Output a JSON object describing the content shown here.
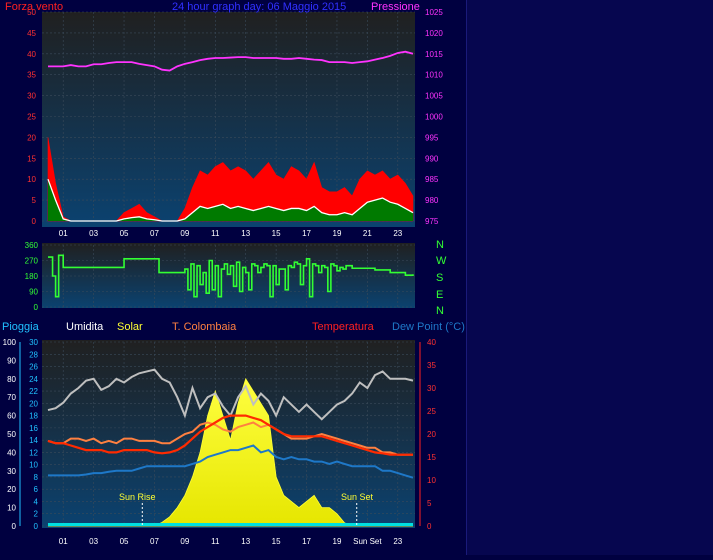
{
  "header": {
    "left_label": "Forza vento",
    "title": "24 hour graph day: 06 Maggio 2015",
    "right_label": "Pressione"
  },
  "middle_labels": {
    "compass": [
      "N",
      "W",
      "S",
      "E",
      "N"
    ]
  },
  "bottom_header": {
    "pioggia": "Pioggia",
    "umidita": "Umidita",
    "solar": "Solar",
    "colombaia": "T. Colombaia",
    "temperatura": "Temperatura",
    "dewpoint": "Dew Point (°C)"
  },
  "annotations": {
    "sunrise": "Sun Rise",
    "sunset": "Sun Set"
  },
  "colors": {
    "bg": "#000040",
    "plot_top": "#222222",
    "plot_bottom": "#0a3d66",
    "wind": "#ff0000",
    "gust_fill": "#007a00",
    "avg_line": "#ffffff",
    "pressure": "#ff33ff",
    "direction": "#33ff33",
    "humidity": "#bfbfbf",
    "solar": "#ffff33",
    "colombaia": "#ff8040",
    "temperature": "#ff2a00",
    "dewpoint": "#1e78c8",
    "rain": "#00e0e0"
  },
  "chart_data": [
    {
      "type": "area",
      "name": "wind-pressure",
      "x_ticks": [
        "01",
        "03",
        "05",
        "07",
        "09",
        "11",
        "13",
        "15",
        "17",
        "19",
        "21",
        "23"
      ],
      "y_left": {
        "label": "Forza vento",
        "ticks": [
          0,
          5,
          10,
          15,
          20,
          25,
          30,
          35,
          40,
          45,
          50
        ],
        "ylim": [
          0,
          50
        ]
      },
      "y_right": {
        "label": "Pressione",
        "ticks": [
          975,
          980,
          985,
          990,
          995,
          1000,
          1005,
          1010,
          1015,
          1020,
          1025
        ],
        "ylim": [
          975,
          1025
        ]
      },
      "hours": [
        0,
        0.5,
        1,
        1.5,
        2,
        2.5,
        3,
        3.5,
        4,
        4.5,
        5,
        5.5,
        6,
        6.5,
        7,
        7.5,
        8,
        8.5,
        9,
        9.5,
        10,
        10.5,
        11,
        11.5,
        12,
        12.5,
        13,
        13.5,
        14,
        14.5,
        15,
        15.5,
        16,
        16.5,
        17,
        17.5,
        18,
        18.5,
        19,
        19.5,
        20,
        20.5,
        21,
        21.5,
        22,
        22.5,
        23,
        23.5,
        24
      ],
      "series": [
        {
          "name": "Pressione",
          "values": [
            1012,
            1012,
            1012,
            1012.3,
            1012,
            1012,
            1012.5,
            1012.5,
            1012.8,
            1013,
            1013,
            1013,
            1012.6,
            1012.3,
            1012,
            1011.2,
            1011,
            1012,
            1012.6,
            1013,
            1013.5,
            1013.8,
            1014,
            1014,
            1014.1,
            1014.2,
            1014.2,
            1014,
            1014,
            1014,
            1014,
            1013.8,
            1013.8,
            1014,
            1013.8,
            1013.6,
            1013.5,
            1013,
            1013,
            1013,
            1012.8,
            1013,
            1013.2,
            1013.6,
            1014,
            1014.5,
            1015.2,
            1015.5,
            1015
          ]
        },
        {
          "name": "wind-max",
          "values": [
            20,
            9,
            1,
            0,
            0,
            0,
            0,
            0,
            0,
            0,
            2,
            3,
            4,
            2,
            1,
            0,
            0,
            0,
            3,
            8,
            12,
            11,
            13,
            14,
            12,
            13,
            12,
            10,
            12,
            14,
            11,
            10,
            13,
            12,
            10,
            14,
            8,
            7,
            7,
            8,
            6,
            10,
            12,
            11,
            12,
            10,
            11,
            9,
            6
          ]
        },
        {
          "name": "wind-avg",
          "values": [
            10,
            5,
            0.5,
            0,
            0,
            0,
            0,
            0,
            0,
            0,
            0.5,
            0.8,
            1,
            0.5,
            0.3,
            0,
            0,
            0,
            0.5,
            2,
            3.5,
            3,
            3.5,
            4,
            3,
            3.5,
            3,
            2.5,
            3,
            3.5,
            3,
            2.5,
            3,
            3,
            2.5,
            3.5,
            2,
            1.5,
            1.5,
            2,
            1.5,
            3,
            4.5,
            5,
            5.5,
            4.5,
            4,
            3,
            2
          ]
        }
      ]
    },
    {
      "type": "line",
      "name": "wind-direction",
      "x_ticks": [
        "01",
        "03",
        "05",
        "07",
        "09",
        "11",
        "13",
        "15",
        "17",
        "19",
        "21",
        "23"
      ],
      "y_left": {
        "ticks": [
          0,
          90,
          180,
          270,
          360
        ],
        "ylim": [
          0,
          360
        ]
      },
      "series": [
        {
          "name": "direction",
          "hours": [
            0,
            0.3,
            0.5,
            0.7,
            1,
            1.5,
            2,
            3,
            4,
            4.8,
            5,
            6,
            7,
            7.3,
            8,
            8.5,
            9,
            9.2,
            9.4,
            9.6,
            9.8,
            10,
            10.2,
            10.4,
            10.6,
            10.8,
            11,
            11.2,
            11.4,
            11.6,
            11.8,
            12,
            12.2,
            12.4,
            12.6,
            12.8,
            13,
            13.2,
            13.4,
            13.6,
            13.8,
            14,
            14.2,
            14.4,
            14.6,
            14.8,
            15,
            15.2,
            15.4,
            15.6,
            15.8,
            16,
            16.2,
            16.4,
            16.6,
            16.8,
            17,
            17.2,
            17.4,
            17.6,
            17.8,
            18,
            18.2,
            18.4,
            18.6,
            18.8,
            19,
            19.2,
            19.4,
            19.6,
            19.8,
            20,
            20.5,
            21,
            21.5,
            22,
            22.5,
            23,
            23.5,
            24
          ],
          "values": [
            290,
            180,
            60,
            300,
            230,
            230,
            230,
            230,
            230,
            230,
            280,
            280,
            280,
            200,
            200,
            200,
            220,
            100,
            250,
            60,
            240,
            130,
            200,
            80,
            270,
            100,
            240,
            60,
            220,
            250,
            190,
            240,
            120,
            260,
            90,
            230,
            200,
            100,
            250,
            240,
            200,
            230,
            250,
            240,
            60,
            240,
            130,
            220,
            220,
            100,
            240,
            230,
            260,
            250,
            130,
            240,
            280,
            60,
            250,
            240,
            200,
            240,
            230,
            90,
            250,
            240,
            210,
            230,
            220,
            240,
            240,
            225,
            225,
            225,
            215,
            215,
            200,
            200,
            185,
            190
          ]
        }
      ]
    },
    {
      "type": "line",
      "name": "weather",
      "x_ticks": [
        "01",
        "03",
        "05",
        "07",
        "09",
        "11",
        "13",
        "15",
        "17",
        "19",
        "Sun Set",
        "23"
      ],
      "y_left_pioggia": {
        "ticks": [
          0,
          10,
          20,
          30,
          40,
          50,
          60,
          70,
          80,
          90,
          100
        ],
        "ylim": [
          0,
          100
        ]
      },
      "y_left_umidita": {
        "ticks": [
          0,
          2,
          4,
          6,
          8,
          10,
          12,
          14,
          16,
          18,
          20,
          22,
          24,
          26,
          28,
          30
        ],
        "ylim": [
          0,
          30
        ]
      },
      "y_right": {
        "label": "Temperatura",
        "ticks": [
          0,
          5,
          10,
          15,
          20,
          25,
          30,
          35,
          40
        ],
        "ylim": [
          0,
          40
        ]
      },
      "hours": [
        0,
        0.5,
        1,
        1.5,
        2,
        2.5,
        3,
        3.5,
        4,
        4.5,
        5,
        5.5,
        6,
        6.5,
        7,
        7.5,
        8,
        8.5,
        9,
        9.5,
        10,
        10.5,
        11,
        11.5,
        12,
        12.5,
        13,
        13.5,
        14,
        14.5,
        15,
        15.5,
        16,
        16.5,
        17,
        17.5,
        18,
        18.5,
        19,
        19.5,
        20,
        20.5,
        21,
        21.5,
        22,
        22.5,
        23,
        23.5,
        24
      ],
      "series": [
        {
          "name": "Umidita",
          "values": [
            63,
            64,
            67,
            72,
            75,
            79,
            80,
            74,
            76,
            80,
            78,
            81,
            83,
            84,
            85,
            80,
            78,
            70,
            60,
            75,
            64,
            70,
            72,
            65,
            60,
            70,
            76,
            66,
            72,
            68,
            60,
            70,
            66,
            62,
            66,
            62,
            58,
            62,
            66,
            68,
            72,
            78,
            75,
            82,
            84,
            80,
            80,
            80,
            79
          ]
        },
        {
          "name": "Solar",
          "values": [
            0,
            0,
            0,
            0,
            0,
            0,
            0,
            0,
            0,
            0,
            0,
            0,
            0,
            0,
            0,
            0.6,
            1.5,
            3,
            5,
            8,
            12,
            18,
            22,
            18,
            14,
            20,
            24,
            22,
            20,
            18,
            8,
            5,
            4,
            3,
            4,
            5,
            3,
            3,
            2,
            0.5,
            0,
            0,
            0,
            0,
            0,
            0,
            0,
            0,
            0
          ]
        },
        {
          "name": "T. Colombaia",
          "values": [
            18.5,
            18,
            18,
            19,
            19,
            18.5,
            19,
            18,
            18.5,
            18,
            19,
            19,
            18.5,
            18.5,
            18.5,
            18,
            18,
            19,
            20,
            20.5,
            22,
            22.5,
            22,
            21,
            20.5,
            21.5,
            22,
            22.5,
            21.5,
            22,
            21,
            20,
            19,
            19,
            19,
            19.5,
            20,
            19.5,
            19,
            18.5,
            18,
            17.5,
            17,
            17,
            16,
            16,
            15.5,
            15.5,
            15.5
          ]
        },
        {
          "name": "Temperatura",
          "values": [
            18.5,
            18,
            18,
            17.5,
            17,
            16.5,
            16.5,
            16.5,
            16,
            16,
            16.5,
            16.5,
            16.5,
            16.5,
            16,
            15.8,
            16,
            16.5,
            17.5,
            19,
            20.5,
            21.5,
            22.5,
            23.5,
            24,
            24,
            24,
            23.5,
            23,
            22,
            21,
            20,
            19.5,
            19.5,
            19.5,
            19.5,
            19.5,
            19,
            18.5,
            18,
            17.5,
            17,
            16.5,
            16,
            15.8,
            15.5,
            15.5,
            15.5,
            15.5
          ]
        },
        {
          "name": "Dew Point",
          "values": [
            11,
            11,
            11,
            11,
            11,
            11.2,
            11.5,
            11.5,
            11.8,
            12,
            12,
            12,
            12.5,
            13,
            13,
            13,
            13,
            13,
            13,
            13.5,
            14,
            15,
            15.5,
            16,
            16.5,
            16.5,
            17,
            17.5,
            16,
            16.5,
            15,
            14.5,
            15,
            14.5,
            14.5,
            14,
            14,
            13.5,
            14,
            13.5,
            13,
            13,
            13,
            13,
            12,
            12,
            11.5,
            11,
            10.5
          ]
        },
        {
          "name": "Pioggia",
          "values": [
            0,
            0,
            0,
            0,
            0,
            0,
            0,
            0,
            0,
            0,
            0,
            0,
            0,
            0,
            0,
            0,
            0,
            0,
            0,
            0,
            0,
            0,
            0,
            0,
            0,
            0,
            0,
            0,
            0,
            0,
            0,
            0,
            0,
            0,
            0,
            0,
            0,
            0,
            0,
            0,
            0,
            0,
            0,
            0,
            0,
            0,
            0,
            0,
            0
          ]
        }
      ],
      "sunrise_hour": 6.2,
      "sunset_hour": 20.3
    }
  ]
}
